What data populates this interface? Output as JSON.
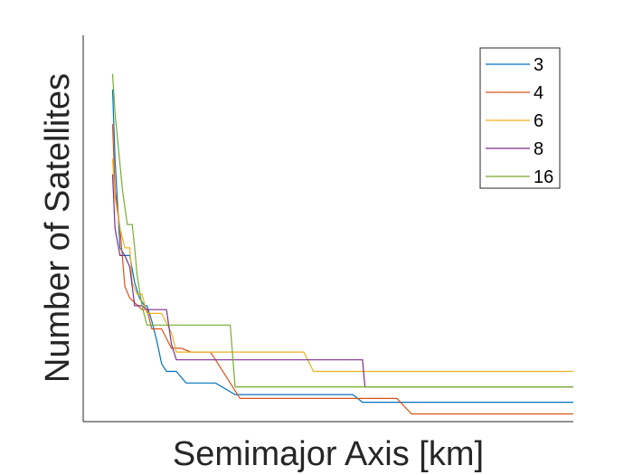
{
  "chart_data": {
    "type": "line",
    "title": "",
    "xlabel": "Semimajor Axis [km]",
    "ylabel": "Number of Satellites",
    "xlim": [
      0,
      100
    ],
    "ylim": [
      0,
      100
    ],
    "x_ticks": false,
    "y_ticks": false,
    "grid": false,
    "legend_position": "top-right",
    "series": [
      {
        "name": "3",
        "color": "#0072BD",
        "points": [
          [
            6,
            86
          ],
          [
            6.5,
            68
          ],
          [
            7.5,
            45
          ],
          [
            8.5,
            43
          ],
          [
            9.5,
            43
          ],
          [
            10.5,
            36
          ],
          [
            11.5,
            32
          ],
          [
            12.5,
            30
          ],
          [
            13,
            30
          ],
          [
            14,
            26
          ],
          [
            15,
            21
          ],
          [
            16,
            15
          ],
          [
            17,
            13
          ],
          [
            18,
            13
          ],
          [
            19,
            13
          ],
          [
            21,
            10
          ],
          [
            27,
            10
          ],
          [
            31,
            7
          ],
          [
            55,
            7
          ],
          [
            57,
            5
          ],
          [
            100,
            5
          ]
        ]
      },
      {
        "name": "4",
        "color": "#D95319",
        "points": [
          [
            6,
            77
          ],
          [
            6.5,
            60
          ],
          [
            7.5,
            50
          ],
          [
            8.5,
            35
          ],
          [
            9.5,
            32
          ],
          [
            12,
            29
          ],
          [
            13,
            29
          ],
          [
            14,
            24
          ],
          [
            15,
            24
          ],
          [
            16,
            24
          ],
          [
            18,
            19
          ],
          [
            20,
            19
          ],
          [
            22,
            18
          ],
          [
            26,
            18
          ],
          [
            29,
            12
          ],
          [
            32,
            6
          ],
          [
            64,
            6
          ],
          [
            67,
            2
          ],
          [
            100,
            2
          ]
        ]
      },
      {
        "name": "6",
        "color": "#EDB120",
        "points": [
          [
            6,
            68
          ],
          [
            6.5,
            58
          ],
          [
            7.5,
            50
          ],
          [
            8.5,
            45
          ],
          [
            9.5,
            45
          ],
          [
            10,
            36
          ],
          [
            11,
            33
          ],
          [
            12,
            33
          ],
          [
            13,
            28
          ],
          [
            16,
            28
          ],
          [
            18,
            23
          ],
          [
            19,
            18
          ],
          [
            45,
            18
          ],
          [
            47,
            13
          ],
          [
            100,
            13
          ]
        ]
      },
      {
        "name": "8",
        "color": "#7E2F8E",
        "points": [
          [
            6,
            64
          ],
          [
            6.5,
            50
          ],
          [
            7.5,
            43
          ],
          [
            8.5,
            43
          ],
          [
            9.5,
            40
          ],
          [
            10.5,
            30
          ],
          [
            12,
            30
          ],
          [
            13,
            29
          ],
          [
            17,
            29
          ],
          [
            18,
            20
          ],
          [
            19,
            16
          ],
          [
            20,
            16
          ],
          [
            31,
            16
          ],
          [
            57,
            16
          ],
          [
            57.5,
            9
          ],
          [
            100,
            9
          ]
        ]
      },
      {
        "name": "16",
        "color": "#77AC30",
        "points": [
          [
            6,
            90
          ],
          [
            6.5,
            80
          ],
          [
            8,
            60
          ],
          [
            9,
            51
          ],
          [
            10,
            51
          ],
          [
            10.5,
            45
          ],
          [
            11,
            38
          ],
          [
            12,
            30
          ],
          [
            13,
            25
          ],
          [
            14,
            25
          ],
          [
            30,
            25
          ],
          [
            31,
            9
          ],
          [
            100,
            9
          ]
        ]
      }
    ]
  }
}
